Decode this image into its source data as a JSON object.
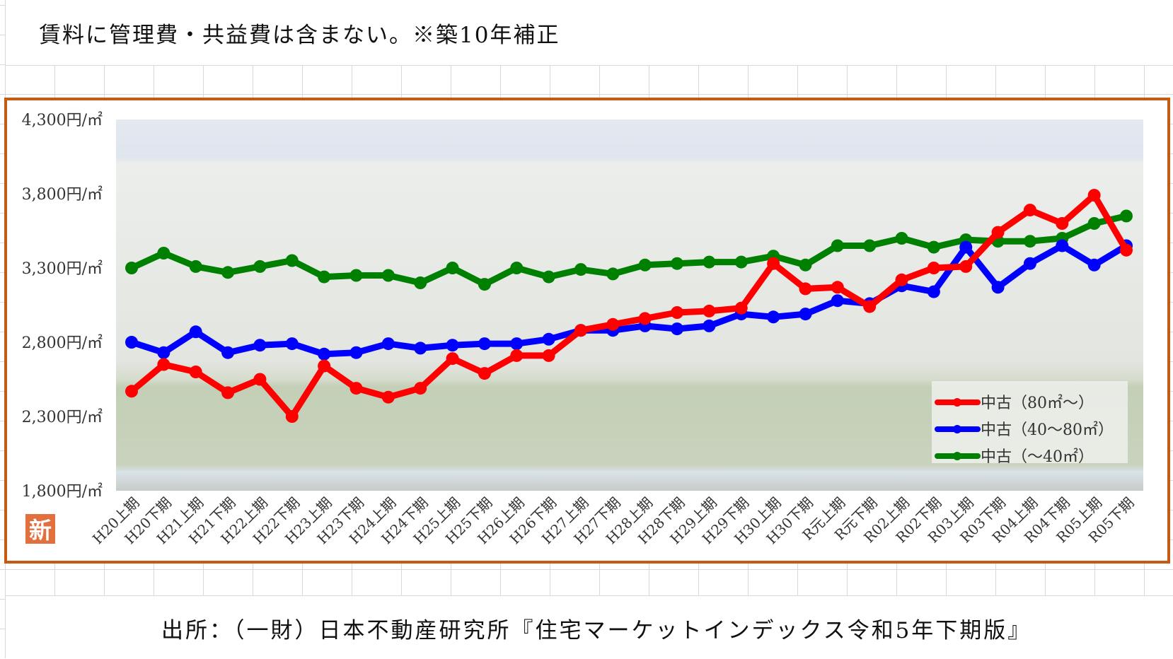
{
  "note": "賃料に管理費・共益費は含まない。※築10年補正",
  "source": "出所：（一財）日本不動産研究所『住宅マーケットインデックス令和5年下期版』",
  "badge": "新",
  "chart_data": {
    "type": "line",
    "title": "",
    "xlabel": "",
    "ylabel": "",
    "ylim": [
      1800,
      4300
    ],
    "yticks": [
      1800,
      2300,
      2800,
      3300,
      3800,
      4300
    ],
    "ytick_labels": [
      "1,800円/㎡",
      "2,300円/㎡",
      "2,800円/㎡",
      "3,300円/㎡",
      "3,800円/㎡",
      "4,300円/㎡"
    ],
    "grid": false,
    "legend_position": "bottom-right",
    "categories": [
      "H20上期",
      "H20下期",
      "H21上期",
      "H21下期",
      "H22上期",
      "H22下期",
      "H23上期",
      "H23下期",
      "H24上期",
      "H24下期",
      "H25上期",
      "H25下期",
      "H26上期",
      "H26下期",
      "H27上期",
      "H27下期",
      "H28上期",
      "H28下期",
      "H29上期",
      "H29下期",
      "H30上期",
      "H30下期",
      "R元上期",
      "R元下期",
      "R02上期",
      "R02下期",
      "R03上期",
      "R03下期",
      "R04上期",
      "R04下期",
      "R05上期",
      "R05下期"
    ],
    "series": [
      {
        "name": "中古（80㎡～）",
        "color": "#ff0000",
        "values": [
          2470,
          2650,
          2600,
          2460,
          2550,
          2300,
          2640,
          2490,
          2430,
          2490,
          2690,
          2590,
          2710,
          2710,
          2880,
          2920,
          2960,
          3000,
          3010,
          3030,
          3330,
          3160,
          3170,
          3040,
          3220,
          3300,
          3310,
          3540,
          3690,
          3600,
          3790,
          3420
        ]
      },
      {
        "name": "中古（40～80㎡）",
        "color": "#0000ff",
        "values": [
          2800,
          2730,
          2870,
          2730,
          2780,
          2790,
          2720,
          2730,
          2790,
          2760,
          2780,
          2790,
          2790,
          2820,
          2880,
          2880,
          2910,
          2890,
          2910,
          2990,
          2970,
          2990,
          3080,
          3060,
          3180,
          3140,
          3440,
          3170,
          3330,
          3450,
          3320,
          3450
        ]
      },
      {
        "name": "中古（～40㎡）",
        "color": "#008000",
        "values": [
          3300,
          3400,
          3310,
          3270,
          3310,
          3350,
          3240,
          3250,
          3250,
          3200,
          3300,
          3190,
          3300,
          3240,
          3290,
          3260,
          3320,
          3330,
          3340,
          3340,
          3380,
          3320,
          3450,
          3450,
          3500,
          3440,
          3490,
          3480,
          3480,
          3500,
          3600,
          3650
        ]
      }
    ]
  }
}
